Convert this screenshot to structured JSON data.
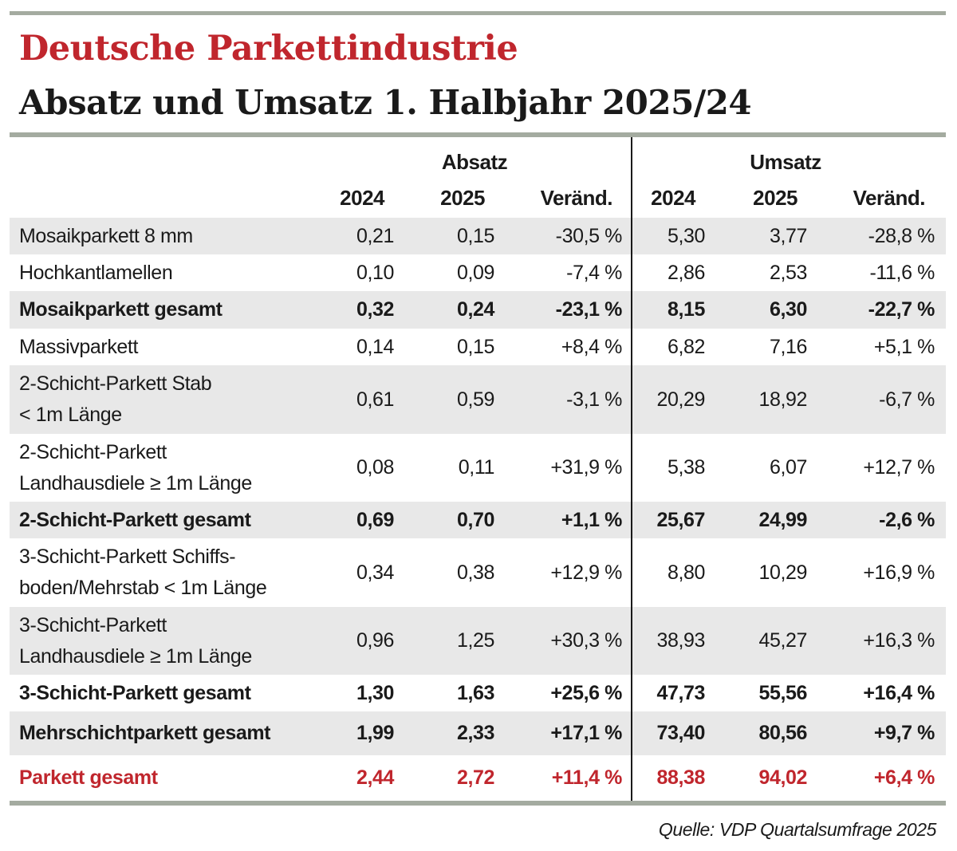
{
  "title": "Deutsche Parkettindustrie",
  "subtitle": "Absatz und Umsatz 1. Halbjahr 2025/24",
  "groups": {
    "absatz": "Absatz",
    "umsatz": "Umsatz"
  },
  "columns": [
    "2024",
    "2025",
    "Veränd.",
    "2024",
    "2025",
    "Veränd."
  ],
  "rows": [
    {
      "label": "Mosaikparkett 8 mm",
      "values": [
        "0,21",
        "0,15",
        "-30,5 %",
        "5,30",
        "3,77",
        "-28,8 %"
      ]
    },
    {
      "label": "Hochkantlamellen",
      "values": [
        "0,10",
        "0,09",
        "-7,4 %",
        "2,86",
        "2,53",
        "-11,6 %"
      ]
    },
    {
      "label": "Mosaikparkett gesamt",
      "values": [
        "0,32",
        "0,24",
        "-23,1 %",
        "8,15",
        "6,30",
        "-22,7 %"
      ]
    },
    {
      "label": "Massivparkett",
      "values": [
        "0,14",
        "0,15",
        "+8,4 %",
        "6,82",
        "7,16",
        "+5,1 %"
      ]
    },
    {
      "label": "2-Schicht-Parkett Stab\n< 1m Länge",
      "values": [
        "0,61",
        "0,59",
        "-3,1 %",
        "20,29",
        "18,92",
        "-6,7 %"
      ]
    },
    {
      "label": "2-Schicht-Parkett\nLandhausdiele ≥ 1m Länge",
      "values": [
        "0,08",
        "0,11",
        "+31,9 %",
        "5,38",
        "6,07",
        "+12,7 %"
      ]
    },
    {
      "label": "2-Schicht-Parkett gesamt",
      "values": [
        "0,69",
        "0,70",
        "+1,1 %",
        "25,67",
        "24,99",
        "-2,6 %"
      ]
    },
    {
      "label": "3-Schicht-Parkett Schiffs-\nboden/Mehrstab < 1m Länge",
      "values": [
        "0,34",
        "0,38",
        "+12,9 %",
        "8,80",
        "10,29",
        "+16,9 %"
      ]
    },
    {
      "label": "3-Schicht-Parkett\nLandhausdiele ≥ 1m Länge",
      "values": [
        "0,96",
        "1,25",
        "+30,3 %",
        "38,93",
        "45,27",
        "+16,3 %"
      ]
    },
    {
      "label": "3-Schicht-Parkett gesamt",
      "values": [
        "1,30",
        "1,63",
        "+25,6 %",
        "47,73",
        "55,56",
        "+16,4 %"
      ]
    },
    {
      "label": "Mehrschichtparkett gesamt",
      "values": [
        "1,99",
        "2,33",
        "+17,1 %",
        "73,40",
        "80,56",
        "+9,7 %"
      ]
    },
    {
      "label": "Parkett gesamt",
      "values": [
        "2,44",
        "2,72",
        "+11,4 %",
        "88,38",
        "94,02",
        "+6,4 %"
      ]
    }
  ],
  "source": "Quelle: VDP Quartalsumfrage 2025",
  "colors": {
    "accent": "#c0262d",
    "rule": "#a4aba0",
    "shade": "#e8e8e8"
  }
}
